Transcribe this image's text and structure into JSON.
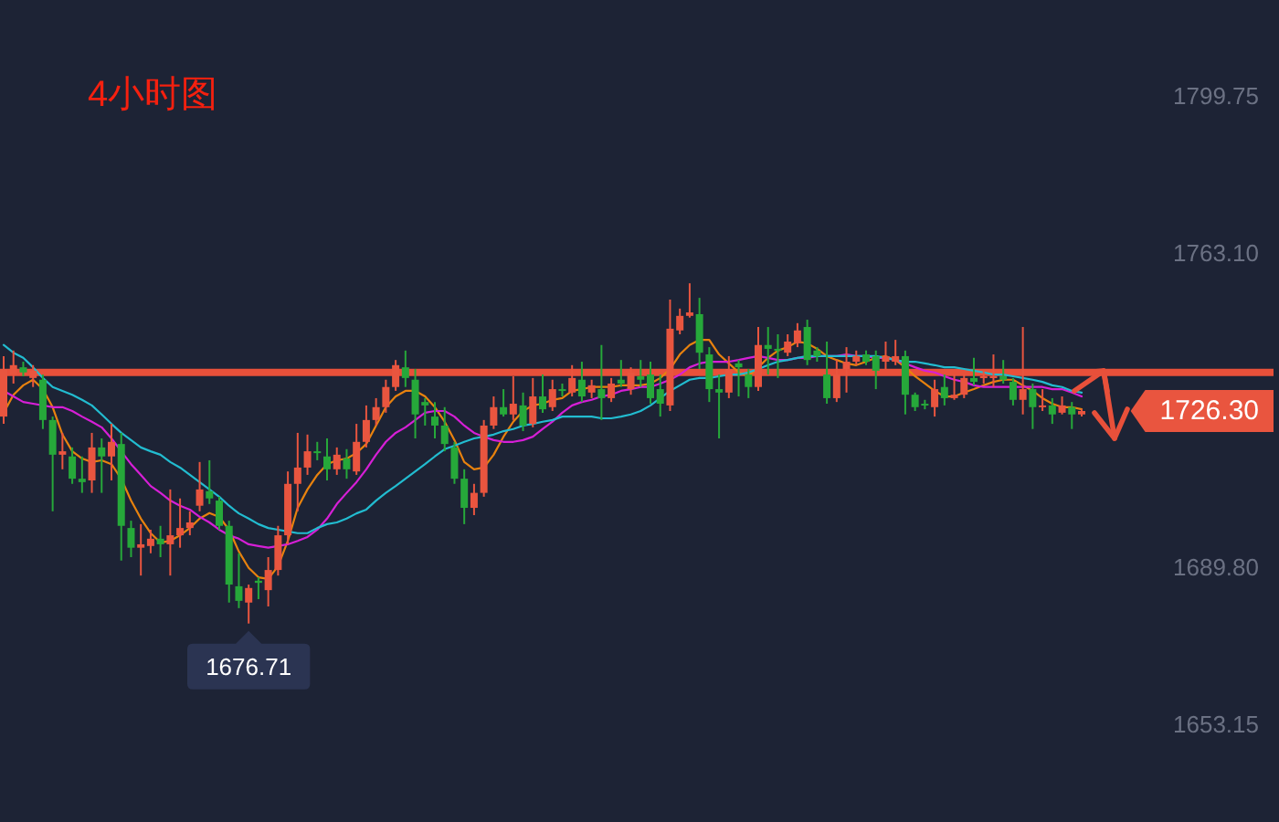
{
  "chart_data": {
    "type": "candlestick",
    "title": "4小时图",
    "categories": [
      null,
      null,
      null,
      null,
      null,
      null,
      null,
      null,
      null,
      null,
      null,
      null,
      null,
      null,
      null,
      null,
      null,
      null,
      null,
      null,
      null,
      null,
      null,
      null,
      null,
      null,
      null,
      null,
      null,
      null,
      null,
      null,
      null,
      null,
      null,
      null,
      null,
      null,
      null,
      null,
      null,
      null,
      null,
      null,
      null,
      null,
      null,
      null,
      null,
      null,
      null,
      null,
      null,
      null,
      null,
      null,
      null,
      null,
      null,
      null,
      null,
      null,
      null,
      null,
      null,
      null,
      null,
      null,
      null,
      null,
      null,
      null,
      null,
      null,
      null,
      null,
      null,
      null,
      null,
      null,
      null,
      null,
      null,
      null,
      null,
      null,
      null,
      null,
      null,
      null,
      null,
      null,
      null,
      null,
      null,
      null,
      null,
      null,
      null,
      null,
      null,
      null,
      null,
      null,
      null,
      null,
      null,
      null,
      null,
      null,
      null
    ],
    "ohlc": [
      [
        1725.0,
        1739.1,
        1723.3,
        1736.1
      ],
      [
        1734.8,
        1740.4,
        1732.7,
        1737.0
      ],
      [
        1736.5,
        1737.8,
        1734.4,
        1735.3
      ],
      [
        1734.0,
        1737.0,
        1731.9,
        1735.7
      ],
      [
        1733.6,
        1734.8,
        1722.1,
        1724.2
      ],
      [
        1724.2,
        1725.0,
        1702.9,
        1716.1
      ],
      [
        1716.1,
        1721.2,
        1712.7,
        1716.9
      ],
      [
        1715.7,
        1717.8,
        1709.3,
        1710.5
      ],
      [
        1710.5,
        1715.7,
        1707.2,
        1709.7
      ],
      [
        1710.1,
        1721.2,
        1707.2,
        1717.8
      ],
      [
        1717.8,
        1719.9,
        1707.2,
        1715.7
      ],
      [
        1715.7,
        1723.3,
        1710.1,
        1719.1
      ],
      [
        1718.6,
        1721.2,
        1691.4,
        1699.5
      ],
      [
        1699.0,
        1700.7,
        1692.2,
        1694.4
      ],
      [
        1694.4,
        1699.9,
        1687.9,
        1695.2
      ],
      [
        1694.8,
        1698.6,
        1693.1,
        1696.5
      ],
      [
        1696.5,
        1699.5,
        1692.2,
        1695.2
      ],
      [
        1695.2,
        1708.0,
        1687.9,
        1697.3
      ],
      [
        1697.3,
        1705.9,
        1694.4,
        1699.0
      ],
      [
        1699.0,
        1702.9,
        1697.3,
        1700.3
      ],
      [
        1704.2,
        1714.4,
        1702.9,
        1708.0
      ],
      [
        1707.6,
        1714.8,
        1704.6,
        1705.9
      ],
      [
        1705.4,
        1706.3,
        1698.6,
        1699.5
      ],
      [
        1699.5,
        1700.7,
        1681.6,
        1685.8
      ],
      [
        1685.4,
        1693.1,
        1680.3,
        1682.0
      ],
      [
        1681.6,
        1685.8,
        1676.71,
        1685.0
      ],
      [
        1686.7,
        1687.5,
        1682.4,
        1686.2
      ],
      [
        1684.5,
        1692.2,
        1680.7,
        1689.2
      ],
      [
        1689.2,
        1699.5,
        1687.9,
        1697.3
      ],
      [
        1697.3,
        1712.2,
        1695.2,
        1709.3
      ],
      [
        1709.3,
        1721.2,
        1702.9,
        1713.1
      ],
      [
        1713.1,
        1720.8,
        1711.4,
        1716.9
      ],
      [
        1716.9,
        1719.1,
        1714.8,
        1716.5
      ],
      [
        1715.7,
        1719.9,
        1710.1,
        1712.7
      ],
      [
        1712.7,
        1717.8,
        1711.4,
        1716.1
      ],
      [
        1715.2,
        1717.4,
        1710.5,
        1712.7
      ],
      [
        1712.2,
        1723.3,
        1711.4,
        1719.1
      ],
      [
        1719.1,
        1727.6,
        1717.8,
        1724.2
      ],
      [
        1724.2,
        1729.3,
        1722.9,
        1727.2
      ],
      [
        1727.2,
        1733.6,
        1725.9,
        1731.9
      ],
      [
        1731.9,
        1738.2,
        1731.0,
        1737.0
      ],
      [
        1736.5,
        1740.4,
        1731.9,
        1734.0
      ],
      [
        1733.6,
        1736.1,
        1719.9,
        1725.5
      ],
      [
        1728.4,
        1729.3,
        1722.9,
        1727.6
      ],
      [
        1725.0,
        1728.4,
        1719.9,
        1722.9
      ],
      [
        1722.9,
        1727.2,
        1716.9,
        1718.6
      ],
      [
        1717.8,
        1719.1,
        1709.3,
        1710.5
      ],
      [
        1710.5,
        1712.7,
        1699.9,
        1703.7
      ],
      [
        1703.7,
        1709.3,
        1702.0,
        1707.2
      ],
      [
        1707.2,
        1724.2,
        1706.3,
        1722.9
      ],
      [
        1722.9,
        1729.7,
        1722.1,
        1727.2
      ],
      [
        1727.2,
        1731.4,
        1725.0,
        1725.5
      ],
      [
        1725.5,
        1734.4,
        1724.2,
        1728.0
      ],
      [
        1727.6,
        1730.6,
        1721.6,
        1722.9
      ],
      [
        1723.3,
        1734.0,
        1722.5,
        1729.7
      ],
      [
        1729.7,
        1734.8,
        1725.9,
        1726.7
      ],
      [
        1727.2,
        1733.6,
        1726.3,
        1731.4
      ],
      [
        1731.4,
        1732.7,
        1729.7,
        1731.0
      ],
      [
        1730.6,
        1737.0,
        1729.7,
        1734.0
      ],
      [
        1733.6,
        1737.8,
        1728.4,
        1729.7
      ],
      [
        1730.6,
        1733.6,
        1729.3,
        1732.3
      ],
      [
        1731.4,
        1741.7,
        1724.2,
        1729.3
      ],
      [
        1729.3,
        1734.0,
        1728.4,
        1732.7
      ],
      [
        1733.6,
        1738.2,
        1731.9,
        1732.7
      ],
      [
        1731.4,
        1736.5,
        1730.1,
        1735.3
      ],
      [
        1734.4,
        1738.2,
        1731.9,
        1733.6
      ],
      [
        1734.8,
        1737.8,
        1728.0,
        1729.3
      ],
      [
        1731.4,
        1734.8,
        1725.0,
        1728.0
      ],
      [
        1727.6,
        1752.3,
        1726.3,
        1745.5
      ],
      [
        1745.1,
        1750.2,
        1744.2,
        1748.5
      ],
      [
        1748.5,
        1756.1,
        1748.1,
        1749.3
      ],
      [
        1748.9,
        1752.7,
        1736.1,
        1739.9
      ],
      [
        1739.5,
        1741.2,
        1728.4,
        1731.4
      ],
      [
        1731.4,
        1734.8,
        1719.9,
        1730.6
      ],
      [
        1730.6,
        1739.1,
        1729.3,
        1736.1
      ],
      [
        1737.4,
        1738.2,
        1729.7,
        1736.5
      ],
      [
        1734.8,
        1736.1,
        1729.3,
        1731.9
      ],
      [
        1731.9,
        1745.9,
        1731.0,
        1741.7
      ],
      [
        1741.7,
        1745.9,
        1734.8,
        1740.8
      ],
      [
        1740.8,
        1744.2,
        1734.0,
        1740.4
      ],
      [
        1739.9,
        1744.2,
        1739.1,
        1742.5
      ],
      [
        1742.1,
        1746.8,
        1741.2,
        1745.1
      ],
      [
        1745.9,
        1747.6,
        1737.0,
        1738.2
      ],
      [
        1740.4,
        1741.2,
        1737.8,
        1739.1
      ],
      [
        1734.8,
        1742.5,
        1728.0,
        1729.3
      ],
      [
        1729.3,
        1738.2,
        1728.4,
        1734.8
      ],
      [
        1736.1,
        1741.2,
        1730.6,
        1737.8
      ],
      [
        1737.8,
        1740.4,
        1737.0,
        1739.1
      ],
      [
        1739.5,
        1740.4,
        1737.0,
        1737.8
      ],
      [
        1739.1,
        1740.4,
        1731.4,
        1735.7
      ],
      [
        1737.8,
        1742.5,
        1736.1,
        1739.1
      ],
      [
        1737.8,
        1742.9,
        1737.0,
        1739.1
      ],
      [
        1739.1,
        1740.4,
        1725.5,
        1730.1
      ],
      [
        1730.1,
        1730.6,
        1726.3,
        1727.2
      ],
      [
        1728.0,
        1728.9,
        1726.7,
        1727.6
      ],
      [
        1727.2,
        1733.6,
        1725.0,
        1731.4
      ],
      [
        1731.9,
        1734.8,
        1727.6,
        1729.3
      ],
      [
        1729.3,
        1734.8,
        1728.9,
        1730.1
      ],
      [
        1730.1,
        1734.8,
        1729.3,
        1734.0
      ],
      [
        1734.0,
        1738.7,
        1732.3,
        1733.1
      ],
      [
        1734.0,
        1735.7,
        1732.7,
        1734.4
      ],
      [
        1734.0,
        1739.5,
        1731.9,
        1734.4
      ],
      [
        1734.4,
        1738.2,
        1732.7,
        1733.6
      ],
      [
        1733.1,
        1734.0,
        1727.6,
        1728.9
      ],
      [
        1728.9,
        1745.9,
        1725.5,
        1731.4
      ],
      [
        1731.4,
        1732.7,
        1722.1,
        1727.2
      ],
      [
        1727.2,
        1731.4,
        1726.3,
        1727.6
      ],
      [
        1727.6,
        1729.3,
        1723.3,
        1725.5
      ],
      [
        1725.9,
        1729.7,
        1725.5,
        1727.6
      ],
      [
        1727.2,
        1728.4,
        1722.1,
        1725.5
      ],
      [
        1725.5,
        1726.7,
        1725.0,
        1726.3
      ]
    ],
    "colors": [
      "#e9553f",
      "#e9553f",
      "#26a83a",
      "#e9553f",
      "#26a83a",
      "#26a83a",
      "#e9553f",
      "#26a83a",
      "#26a83a",
      "#e9553f",
      "#26a83a",
      "#e9553f",
      "#26a83a",
      "#26a83a",
      "#e9553f",
      "#e9553f",
      "#26a83a",
      "#e9553f",
      "#e9553f",
      "#e9553f",
      "#e9553f",
      "#26a83a",
      "#26a83a",
      "#26a83a",
      "#26a83a",
      "#e9553f",
      "#26a83a",
      "#e9553f",
      "#e9553f",
      "#e9553f",
      "#e9553f",
      "#e9553f",
      "#26a83a",
      "#26a83a",
      "#e9553f",
      "#26a83a",
      "#e9553f",
      "#e9553f",
      "#e9553f",
      "#e9553f",
      "#e9553f",
      "#26a83a",
      "#26a83a",
      "#26a83a",
      "#26a83a",
      "#26a83a",
      "#26a83a",
      "#26a83a",
      "#e9553f",
      "#e9553f",
      "#e9553f",
      "#26a83a",
      "#e9553f",
      "#26a83a",
      "#e9553f",
      "#26a83a",
      "#e9553f",
      "#26a83a",
      "#e9553f",
      "#26a83a",
      "#e9553f",
      "#26a83a",
      "#e9553f",
      "#26a83a",
      "#e9553f",
      "#26a83a",
      "#26a83a",
      "#26a83a",
      "#e9553f",
      "#e9553f",
      "#e9553f",
      "#26a83a",
      "#26a83a",
      "#26a83a",
      "#e9553f",
      "#26a83a",
      "#26a83a",
      "#e9553f",
      "#26a83a",
      "#26a83a",
      "#e9553f",
      "#e9553f",
      "#26a83a",
      "#26a83a",
      "#26a83a",
      "#e9553f",
      "#e9553f",
      "#e9553f",
      "#26a83a",
      "#26a83a",
      "#e9553f",
      "#e9553f",
      "#26a83a",
      "#26a83a",
      "#26a83a",
      "#e9553f",
      "#26a83a",
      "#e9553f",
      "#e9553f",
      "#26a83a",
      "#e9553f",
      "#e9553f",
      "#26a83a",
      "#26a83a",
      "#e9553f",
      "#26a83a",
      "#e9553f",
      "#26a83a",
      "#e9553f",
      "#26a83a",
      "#e9553f"
    ],
    "series": [
      {
        "type": "line",
        "color": "#e8820e",
        "values": [
          1725.9,
          1730.1,
          1732.3,
          1733.6,
          1731.4,
          1727.2,
          1720.8,
          1716.9,
          1715.2,
          1714.4,
          1714.8,
          1713.9,
          1710.5,
          1705.4,
          1701.2,
          1697.8,
          1695.6,
          1696.0,
          1697.3,
          1699.0,
          1701.2,
          1702.5,
          1701.6,
          1698.6,
          1693.5,
          1689.7,
          1687.5,
          1687.1,
          1690.1,
          1696.0,
          1703.7,
          1708.0,
          1711.4,
          1713.9,
          1714.8,
          1715.2,
          1716.5,
          1718.6,
          1722.9,
          1727.2,
          1729.7,
          1731.0,
          1731.0,
          1729.7,
          1727.2,
          1723.8,
          1719.5,
          1714.4,
          1712.7,
          1713.1,
          1716.1,
          1720.3,
          1723.8,
          1726.3,
          1727.6,
          1728.0,
          1728.9,
          1729.3,
          1731.0,
          1731.4,
          1731.9,
          1731.9,
          1731.9,
          1732.3,
          1732.3,
          1732.3,
          1732.7,
          1734.0,
          1736.1,
          1739.5,
          1741.7,
          1742.9,
          1742.9,
          1739.5,
          1737.4,
          1735.3,
          1734.4,
          1736.5,
          1738.7,
          1740.4,
          1741.2,
          1742.5,
          1742.1,
          1740.8,
          1739.1,
          1738.2,
          1737.4,
          1737.0,
          1737.8,
          1738.7,
          1739.1,
          1738.2,
          1736.5,
          1734.4,
          1732.7,
          1731.0,
          1729.7,
          1729.7,
          1730.6,
          1731.4,
          1732.3,
          1733.1,
          1733.6,
          1733.6,
          1732.3,
          1731.0,
          1729.3,
          1728.0,
          1727.2,
          1727.2,
          1726.7
        ]
      },
      {
        "type": "line",
        "color": "#d61fd6",
        "values": [
          1731.0,
          1729.7,
          1728.4,
          1728.0,
          1727.6,
          1727.2,
          1727.2,
          1726.3,
          1725.0,
          1723.8,
          1722.5,
          1719.9,
          1716.9,
          1713.9,
          1711.4,
          1708.8,
          1707.2,
          1705.4,
          1704.2,
          1703.3,
          1701.6,
          1700.3,
          1698.6,
          1697.3,
          1696.5,
          1695.2,
          1694.8,
          1694.4,
          1694.8,
          1695.2,
          1696.0,
          1696.9,
          1698.6,
          1701.2,
          1704.6,
          1707.2,
          1709.7,
          1712.7,
          1716.1,
          1719.1,
          1721.2,
          1722.5,
          1724.2,
          1725.9,
          1726.3,
          1726.3,
          1725.0,
          1722.9,
          1721.2,
          1720.3,
          1719.5,
          1719.1,
          1719.1,
          1719.5,
          1720.3,
          1722.1,
          1723.8,
          1725.9,
          1727.6,
          1728.4,
          1728.9,
          1729.7,
          1730.1,
          1731.0,
          1731.4,
          1731.9,
          1731.9,
          1732.7,
          1733.6,
          1734.8,
          1736.5,
          1737.4,
          1737.8,
          1737.8,
          1737.8,
          1738.2,
          1738.7,
          1739.1,
          1738.7,
          1738.2,
          1738.2,
          1738.7,
          1738.7,
          1739.1,
          1739.1,
          1739.1,
          1739.5,
          1739.1,
          1739.1,
          1738.7,
          1738.7,
          1738.2,
          1737.4,
          1736.5,
          1735.7,
          1735.3,
          1734.4,
          1733.6,
          1733.1,
          1732.3,
          1731.9,
          1731.9,
          1731.9,
          1731.9,
          1731.9,
          1731.9,
          1731.9,
          1731.4,
          1731.4,
          1730.6,
          1729.7
        ]
      },
      {
        "type": "line",
        "color": "#22bcd0",
        "values": [
          1741.7,
          1739.9,
          1738.7,
          1736.5,
          1734.0,
          1731.9,
          1731.0,
          1730.1,
          1728.9,
          1727.6,
          1725.5,
          1723.3,
          1721.2,
          1719.5,
          1717.8,
          1716.9,
          1716.1,
          1714.4,
          1713.1,
          1711.4,
          1709.7,
          1708.0,
          1706.3,
          1704.2,
          1702.4,
          1701.2,
          1699.9,
          1699.0,
          1698.6,
          1698.2,
          1697.8,
          1697.8,
          1699.0,
          1699.9,
          1700.3,
          1701.2,
          1702.4,
          1703.3,
          1705.4,
          1707.2,
          1708.8,
          1710.5,
          1712.2,
          1713.9,
          1715.7,
          1717.4,
          1718.2,
          1719.1,
          1719.9,
          1720.3,
          1720.8,
          1721.6,
          1722.1,
          1722.9,
          1723.3,
          1723.8,
          1724.2,
          1725.0,
          1725.0,
          1725.0,
          1725.0,
          1724.6,
          1724.6,
          1725.0,
          1725.5,
          1726.3,
          1727.6,
          1729.3,
          1731.0,
          1732.3,
          1733.6,
          1734.0,
          1734.0,
          1734.4,
          1734.8,
          1734.8,
          1735.3,
          1736.1,
          1737.0,
          1737.8,
          1738.2,
          1738.7,
          1739.1,
          1739.1,
          1739.1,
          1739.1,
          1739.1,
          1739.1,
          1739.1,
          1739.1,
          1738.7,
          1738.2,
          1737.8,
          1737.8,
          1737.4,
          1737.0,
          1736.5,
          1736.5,
          1736.1,
          1735.7,
          1735.3,
          1734.8,
          1734.8,
          1734.4,
          1734.0,
          1733.6,
          1733.1,
          1732.3,
          1731.9,
          1731.0,
          1730.6
        ]
      }
    ],
    "ylim": [
      1630.4,
      1822.2
    ],
    "yticks": [
      1653.15,
      {
        "value": 1689.8,
        "label": "1689.80"
      },
      {
        "value": 1763.1,
        "label": "1763.10"
      },
      1799.75
    ],
    "tick_labels": "y",
    "ref_lines": [
      {
        "axis": "y",
        "value": 1735.3,
        "color": "#e8503a"
      }
    ],
    "annotations": [
      {
        "text": "1676.71",
        "y": 1676.71
      },
      "1726.30"
    ]
  }
}
